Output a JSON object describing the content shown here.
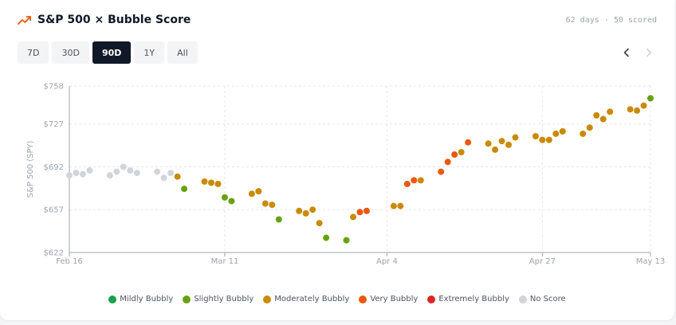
{
  "header": {
    "title": "S&P 500 × Bubble Score",
    "days": "62 days",
    "separator": "·",
    "scored": "50 scored"
  },
  "ranges": [
    {
      "label": "7D",
      "active": false
    },
    {
      "label": "30D",
      "active": false
    },
    {
      "label": "90D",
      "active": true
    },
    {
      "label": "1Y",
      "active": false
    },
    {
      "label": "All",
      "active": false
    }
  ],
  "colors": {
    "accent": "#ea580c",
    "Mildly Bubbly": "#16a34a",
    "Slightly Bubbly": "#65a30d",
    "Moderately Bubbly": "#ca8a04",
    "Very Bubbly": "#ea580c",
    "Extremely Bubbly": "#dc2626",
    "No Score": "#d1d5db"
  },
  "chart_data": {
    "type": "scatter",
    "ylabel": "S&P 500 (SPY)",
    "yticks": [
      "$622",
      "$657",
      "$692",
      "$727",
      "$758"
    ],
    "ylim": [
      622,
      758
    ],
    "xticks": [
      {
        "label": "Feb 16",
        "day": 0
      },
      {
        "label": "Mar 11",
        "day": 23
      },
      {
        "label": "Apr 4",
        "day": 47
      },
      {
        "label": "Apr 27",
        "day": 70
      },
      {
        "label": "May 13",
        "day": 86
      }
    ],
    "xlim": [
      0,
      86
    ],
    "grid": true,
    "legend_position": "bottom",
    "categories": [
      "Mildly Bubbly",
      "Slightly Bubbly",
      "Moderately Bubbly",
      "Very Bubbly",
      "Extremely Bubbly",
      "No Score"
    ],
    "points": [
      {
        "day": 0,
        "y": 685,
        "cat": "No Score"
      },
      {
        "day": 1,
        "y": 687,
        "cat": "No Score"
      },
      {
        "day": 2,
        "y": 686,
        "cat": "No Score"
      },
      {
        "day": 3,
        "y": 689,
        "cat": "No Score"
      },
      {
        "day": 6,
        "y": 685,
        "cat": "No Score"
      },
      {
        "day": 7,
        "y": 688,
        "cat": "No Score"
      },
      {
        "day": 8,
        "y": 692,
        "cat": "No Score"
      },
      {
        "day": 9,
        "y": 689,
        "cat": "No Score"
      },
      {
        "day": 10,
        "y": 687,
        "cat": "No Score"
      },
      {
        "day": 13,
        "y": 688,
        "cat": "No Score"
      },
      {
        "day": 14,
        "y": 683,
        "cat": "No Score"
      },
      {
        "day": 15,
        "y": 687,
        "cat": "No Score"
      },
      {
        "day": 16,
        "y": 684,
        "cat": "Moderately Bubbly"
      },
      {
        "day": 17,
        "y": 674,
        "cat": "Slightly Bubbly"
      },
      {
        "day": 20,
        "y": 680,
        "cat": "Moderately Bubbly"
      },
      {
        "day": 21,
        "y": 679,
        "cat": "Moderately Bubbly"
      },
      {
        "day": 22,
        "y": 678,
        "cat": "Moderately Bubbly"
      },
      {
        "day": 23,
        "y": 667,
        "cat": "Slightly Bubbly"
      },
      {
        "day": 24,
        "y": 664,
        "cat": "Slightly Bubbly"
      },
      {
        "day": 27,
        "y": 670,
        "cat": "Moderately Bubbly"
      },
      {
        "day": 28,
        "y": 672,
        "cat": "Moderately Bubbly"
      },
      {
        "day": 29,
        "y": 662,
        "cat": "Moderately Bubbly"
      },
      {
        "day": 30,
        "y": 661,
        "cat": "Moderately Bubbly"
      },
      {
        "day": 31,
        "y": 649,
        "cat": "Slightly Bubbly"
      },
      {
        "day": 34,
        "y": 656,
        "cat": "Moderately Bubbly"
      },
      {
        "day": 35,
        "y": 654,
        "cat": "Moderately Bubbly"
      },
      {
        "day": 36,
        "y": 657,
        "cat": "Moderately Bubbly"
      },
      {
        "day": 37,
        "y": 646,
        "cat": "Moderately Bubbly"
      },
      {
        "day": 38,
        "y": 634,
        "cat": "Slightly Bubbly"
      },
      {
        "day": 41,
        "y": 632,
        "cat": "Slightly Bubbly"
      },
      {
        "day": 42,
        "y": 651,
        "cat": "Moderately Bubbly"
      },
      {
        "day": 43,
        "y": 655,
        "cat": "Very Bubbly"
      },
      {
        "day": 44,
        "y": 656,
        "cat": "Very Bubbly"
      },
      {
        "day": 48,
        "y": 660,
        "cat": "Moderately Bubbly"
      },
      {
        "day": 49,
        "y": 660,
        "cat": "Moderately Bubbly"
      },
      {
        "day": 50,
        "y": 678,
        "cat": "Very Bubbly"
      },
      {
        "day": 51,
        "y": 681,
        "cat": "Very Bubbly"
      },
      {
        "day": 52,
        "y": 681,
        "cat": "Moderately Bubbly"
      },
      {
        "day": 55,
        "y": 688,
        "cat": "Very Bubbly"
      },
      {
        "day": 56,
        "y": 696,
        "cat": "Very Bubbly"
      },
      {
        "day": 57,
        "y": 702,
        "cat": "Very Bubbly"
      },
      {
        "day": 58,
        "y": 704,
        "cat": "Moderately Bubbly"
      },
      {
        "day": 59,
        "y": 712,
        "cat": "Very Bubbly"
      },
      {
        "day": 62,
        "y": 711,
        "cat": "Moderately Bubbly"
      },
      {
        "day": 63,
        "y": 706,
        "cat": "Moderately Bubbly"
      },
      {
        "day": 64,
        "y": 713,
        "cat": "Moderately Bubbly"
      },
      {
        "day": 65,
        "y": 710,
        "cat": "Moderately Bubbly"
      },
      {
        "day": 66,
        "y": 716,
        "cat": "Moderately Bubbly"
      },
      {
        "day": 69,
        "y": 717,
        "cat": "Moderately Bubbly"
      },
      {
        "day": 70,
        "y": 714,
        "cat": "Moderately Bubbly"
      },
      {
        "day": 71,
        "y": 714,
        "cat": "Moderately Bubbly"
      },
      {
        "day": 72,
        "y": 719,
        "cat": "Moderately Bubbly"
      },
      {
        "day": 73,
        "y": 721,
        "cat": "Moderately Bubbly"
      },
      {
        "day": 76,
        "y": 719,
        "cat": "Moderately Bubbly"
      },
      {
        "day": 77,
        "y": 724,
        "cat": "Moderately Bubbly"
      },
      {
        "day": 78,
        "y": 734,
        "cat": "Moderately Bubbly"
      },
      {
        "day": 79,
        "y": 731,
        "cat": "Moderately Bubbly"
      },
      {
        "day": 80,
        "y": 737,
        "cat": "Moderately Bubbly"
      },
      {
        "day": 83,
        "y": 739,
        "cat": "Moderately Bubbly"
      },
      {
        "day": 84,
        "y": 738,
        "cat": "Moderately Bubbly"
      },
      {
        "day": 85,
        "y": 742,
        "cat": "Moderately Bubbly"
      },
      {
        "day": 86,
        "y": 748,
        "cat": "Slightly Bubbly"
      }
    ]
  }
}
